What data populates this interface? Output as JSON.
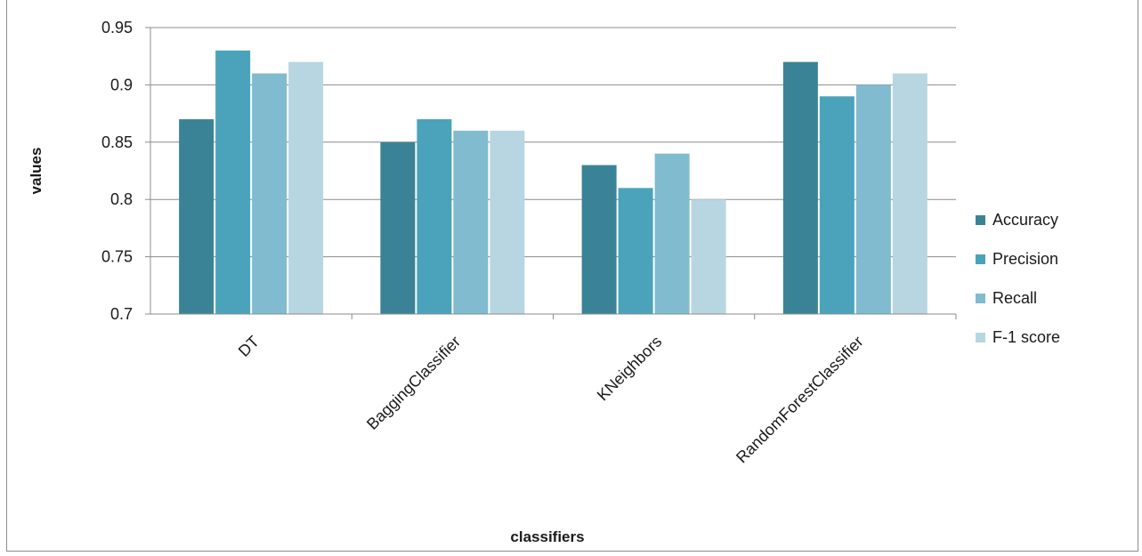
{
  "chart_data": {
    "type": "bar",
    "title": "",
    "xlabel": "classifiers",
    "ylabel": "values",
    "categories": [
      "DT",
      "BaggingClassifier",
      "KNeighbors",
      "RandomForestClassifier"
    ],
    "series": [
      {
        "name": "Accuracy",
        "color": "#3a8396",
        "values": [
          0.87,
          0.85,
          0.83,
          0.92
        ]
      },
      {
        "name": "Precision",
        "color": "#4aa3bb",
        "values": [
          0.93,
          0.87,
          0.81,
          0.89
        ]
      },
      {
        "name": "Recall",
        "color": "#80bbd0",
        "values": [
          0.91,
          0.86,
          0.84,
          0.9
        ]
      },
      {
        "name": "F-1 score",
        "color": "#b8d6e1",
        "values": [
          0.92,
          0.86,
          0.8,
          0.91
        ]
      }
    ],
    "ylim": [
      0.7,
      0.95
    ],
    "yticks": [
      "0.7",
      "0.75",
      "0.8",
      "0.85",
      "0.9",
      "0.95"
    ],
    "grid": true,
    "legend_position": "right"
  }
}
